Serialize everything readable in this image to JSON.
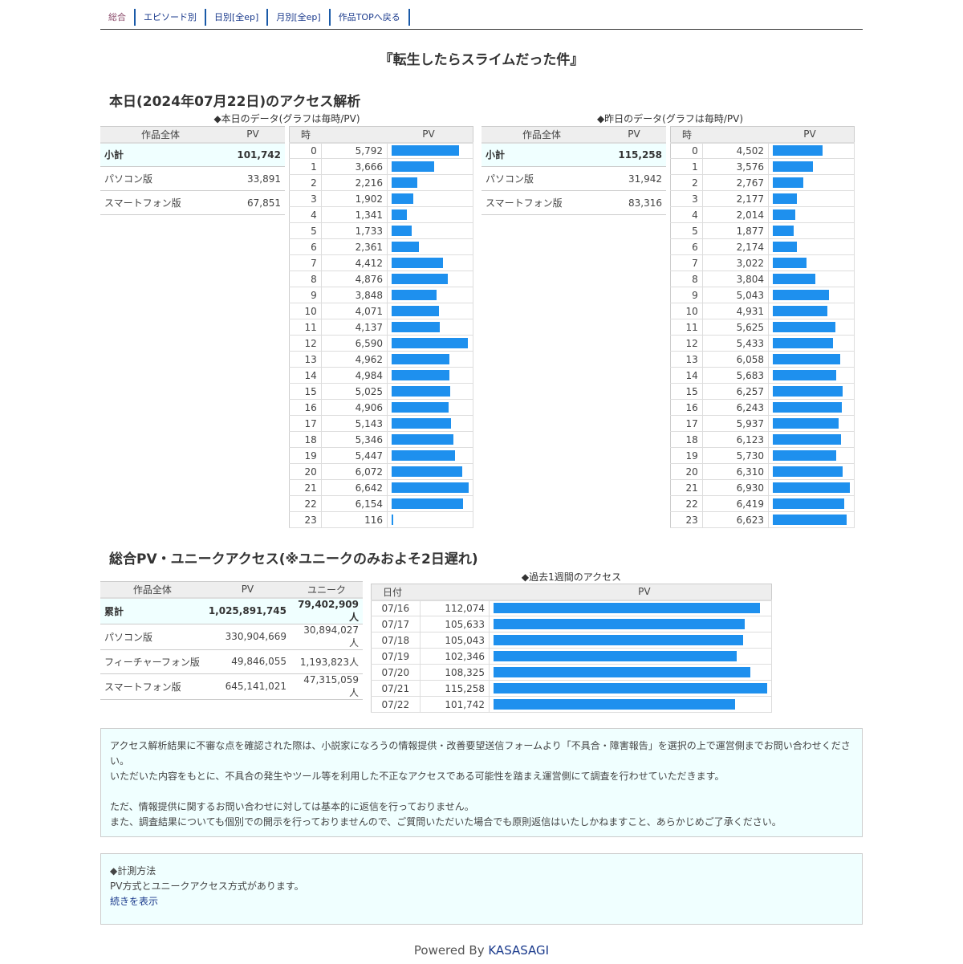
{
  "nav": [
    {
      "label": "総合",
      "current": true
    },
    {
      "label": "エピソード別"
    },
    {
      "label": "日別[全ep]"
    },
    {
      "label": "月別[全ep]"
    },
    {
      "label": "作品TOPへ戻る"
    }
  ],
  "title": "『転生したらスライムだった件』",
  "today": {
    "heading": "本日(2024年07月22日)のアクセス解析",
    "today_caption": "◆本日のデータ(グラフは毎時/PV)",
    "yesterday_caption": "◆昨日のデータ(グラフは毎時/PV)",
    "summary_headers": [
      "作品全体",
      "PV"
    ],
    "hour_headers": [
      "時",
      "PV"
    ],
    "today_summary": [
      [
        "小計",
        "101,742"
      ],
      [
        "パソコン版",
        "33,891"
      ],
      [
        "スマートフォン版",
        "67,851"
      ]
    ],
    "yesterday_summary": [
      [
        "小計",
        "115,258"
      ],
      [
        "パソコン版",
        "31,942"
      ],
      [
        "スマートフォン版",
        "83,316"
      ]
    ]
  },
  "chart_data": [
    {
      "type": "bar",
      "title": "◆本日のデータ(グラフは毎時/PV)",
      "xlabel": "時",
      "ylabel": "PV",
      "categories": [
        "0",
        "1",
        "2",
        "3",
        "4",
        "5",
        "6",
        "7",
        "8",
        "9",
        "10",
        "11",
        "12",
        "13",
        "14",
        "15",
        "16",
        "17",
        "18",
        "19",
        "20",
        "21",
        "22",
        "23"
      ],
      "values": [
        5792,
        3666,
        2216,
        1902,
        1341,
        1733,
        2361,
        4412,
        4876,
        3848,
        4071,
        4137,
        6590,
        4962,
        4984,
        5025,
        4906,
        5143,
        5346,
        5447,
        6072,
        6642,
        6154,
        116
      ],
      "color": "#1e90ee"
    },
    {
      "type": "bar",
      "title": "◆昨日のデータ(グラフは毎時/PV)",
      "xlabel": "時",
      "ylabel": "PV",
      "categories": [
        "0",
        "1",
        "2",
        "3",
        "4",
        "5",
        "6",
        "7",
        "8",
        "9",
        "10",
        "11",
        "12",
        "13",
        "14",
        "15",
        "16",
        "17",
        "18",
        "19",
        "20",
        "21",
        "22",
        "23"
      ],
      "values": [
        4502,
        3576,
        2767,
        2177,
        2014,
        1877,
        2174,
        3022,
        3804,
        5043,
        4931,
        5625,
        5433,
        6058,
        5683,
        6257,
        6243,
        5937,
        6123,
        5730,
        6310,
        6930,
        6419,
        6623
      ],
      "color": "#1e90ee"
    },
    {
      "type": "bar",
      "title": "◆過去1週間のアクセス",
      "xlabel": "日付",
      "ylabel": "PV",
      "categories": [
        "07/16",
        "07/17",
        "07/18",
        "07/19",
        "07/20",
        "07/21",
        "07/22"
      ],
      "values": [
        112074,
        105633,
        105043,
        102346,
        108325,
        115258,
        101742
      ],
      "color": "#1e90ee"
    }
  ],
  "total": {
    "heading": "総合PV・ユニークアクセス(※ユニークのみおよそ2日遅れ)",
    "headers": [
      "作品全体",
      "PV",
      "ユニーク"
    ],
    "rows": [
      [
        "累計",
        "1,025,891,745",
        "79,402,909人"
      ],
      [
        "パソコン版",
        "330,904,669",
        "30,894,027人"
      ],
      [
        "フィーチャーフォン版",
        "49,846,055",
        "1,193,823人"
      ],
      [
        "スマートフォン版",
        "645,141,021",
        "47,315,059人"
      ]
    ],
    "week_caption": "◆過去1週間のアクセス",
    "week_headers": [
      "日付",
      "PV"
    ]
  },
  "notice": [
    "アクセス解析結果に不審な点を確認された際は、小説家になろうの情報提供・改善要望送信フォームより「不具合・障害報告」を選択の上で運営側までお問い合わせください。",
    "いただいた内容をもとに、不具合の発生やツール等を利用した不正なアクセスである可能性を踏まえ運営側にて調査を行わせていただきます。",
    "",
    "ただ、情報提供に関するお問い合わせに対しては基本的に返信を行っておりません。",
    "また、調査結果についても個別での開示を行っておりませんので、ご質問いただいた場合でも原則返信はいたしかねますこと、あらかじめご了承ください。"
  ],
  "method": {
    "title": "◆計測方法",
    "text": "PV方式とユニークアクセス方式があります。",
    "link": "続きを表示"
  },
  "footer": {
    "prefix": "Powered By ",
    "link": "KASASAGI"
  }
}
